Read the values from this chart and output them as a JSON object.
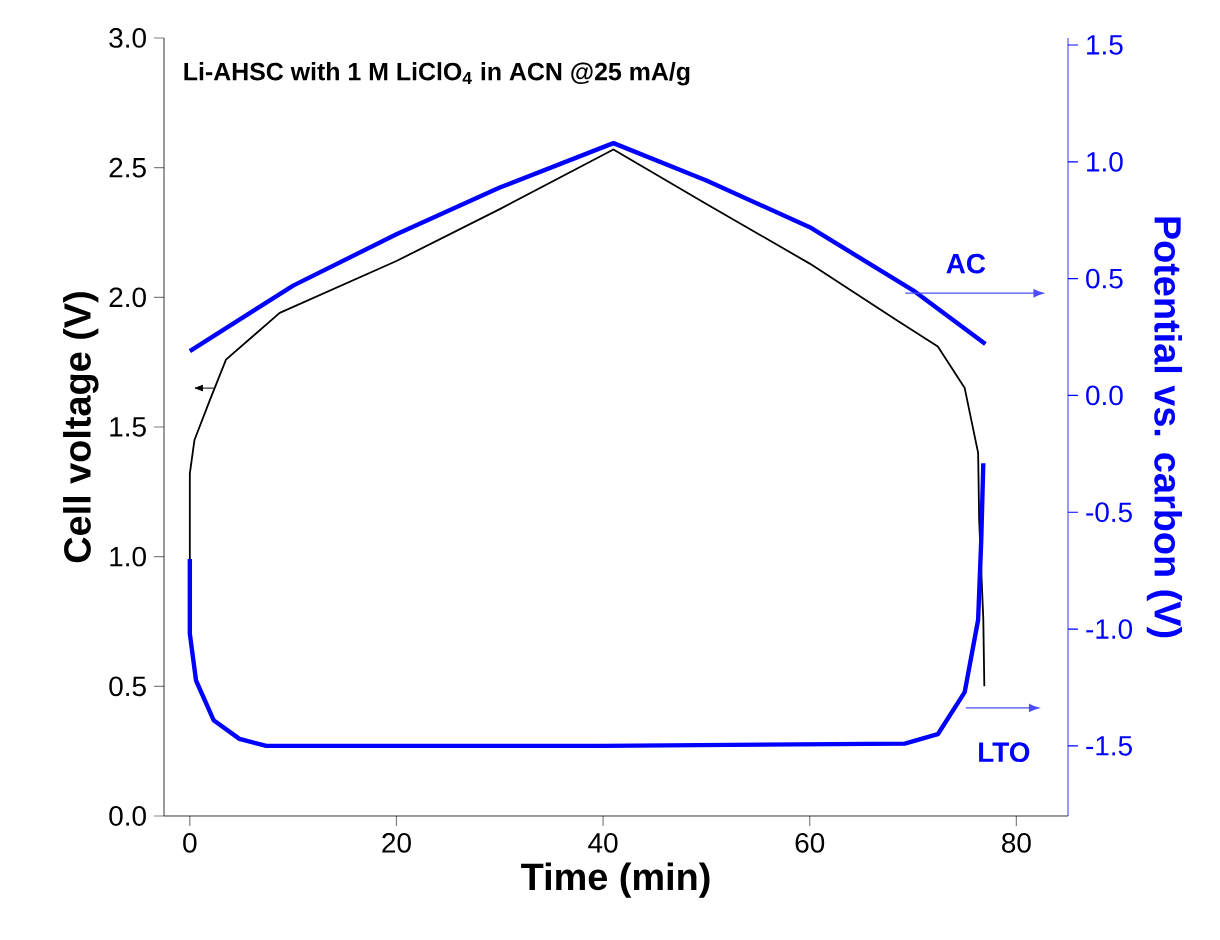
{
  "chart_data": {
    "type": "line",
    "title": "Li-AHSC with 1 M LiClO$_{4}$ in ACN @25 mA/g",
    "xlabel": "Time (min)",
    "ylabel": "Cell voltage (V)",
    "y2label": "Potential vs. carbon (V)",
    "annotations": [
      "AC",
      "LTO"
    ],
    "xlim": [
      -2.5,
      85
    ],
    "xticks": [
      0,
      20,
      40,
      60,
      80
    ],
    "ylim": [
      0,
      3.0
    ],
    "yticks": [
      {
        "value": 0,
        "label": "0.0"
      },
      {
        "value": 0.5,
        "label": "0.5"
      },
      {
        "value": 1,
        "label": "1.0"
      },
      {
        "value": 1.5,
        "label": "1.5"
      },
      {
        "value": 2,
        "label": "2.0"
      },
      {
        "value": 2.5,
        "label": "2.5"
      },
      {
        "value": 3,
        "label": "3.0"
      }
    ],
    "y2lim": [
      -1.8,
      1.53
    ],
    "y2ticks": [
      {
        "value": -1.5,
        "label": "-1.5"
      },
      {
        "value": -1,
        "label": "-1.0"
      },
      {
        "value": -0.5,
        "label": "-0.5"
      },
      {
        "value": 0,
        "label": "0.0"
      },
      {
        "value": 0.5,
        "label": "0.5"
      },
      {
        "value": 1,
        "label": "1.0"
      },
      {
        "value": 1.5,
        "label": "1.5"
      }
    ],
    "series": [
      {
        "color": "#000000",
        "axis": "y",
        "x": [
          0,
          0,
          0.45,
          1.9,
          3.5,
          8.7,
          20,
          30,
          41,
          50,
          60,
          68.5,
          72.4,
          75,
          76.3,
          76.4,
          76.8,
          76.9
        ],
        "values": [
          0.99,
          1.32,
          1.45,
          1.6,
          1.76,
          1.94,
          2.14,
          2.34,
          2.57,
          2.36,
          2.13,
          1.91,
          1.81,
          1.65,
          1.4,
          1.14,
          0.76,
          0.5
        ]
      },
      {
        "color": "#0000ff",
        "axis": "y2",
        "x": [
          0,
          5,
          10,
          20,
          30,
          41,
          50,
          60,
          70,
          77
        ],
        "values": [
          0.19,
          0.33,
          0.47,
          0.69,
          0.89,
          1.08,
          0.92,
          0.72,
          0.45,
          0.22
        ]
      },
      {
        "color": "#0000ff",
        "axis": "y2",
        "x": [
          0,
          0,
          0.6,
          2.3,
          4.8,
          7.4,
          40,
          69.2,
          72.4,
          75,
          76.3,
          76.6,
          76.8
        ],
        "values": [
          -0.7,
          -1.02,
          -1.22,
          -1.39,
          -1.47,
          -1.5,
          -1.5,
          -1.49,
          -1.45,
          -1.27,
          -0.96,
          -0.62,
          -0.29
        ]
      }
    ]
  }
}
